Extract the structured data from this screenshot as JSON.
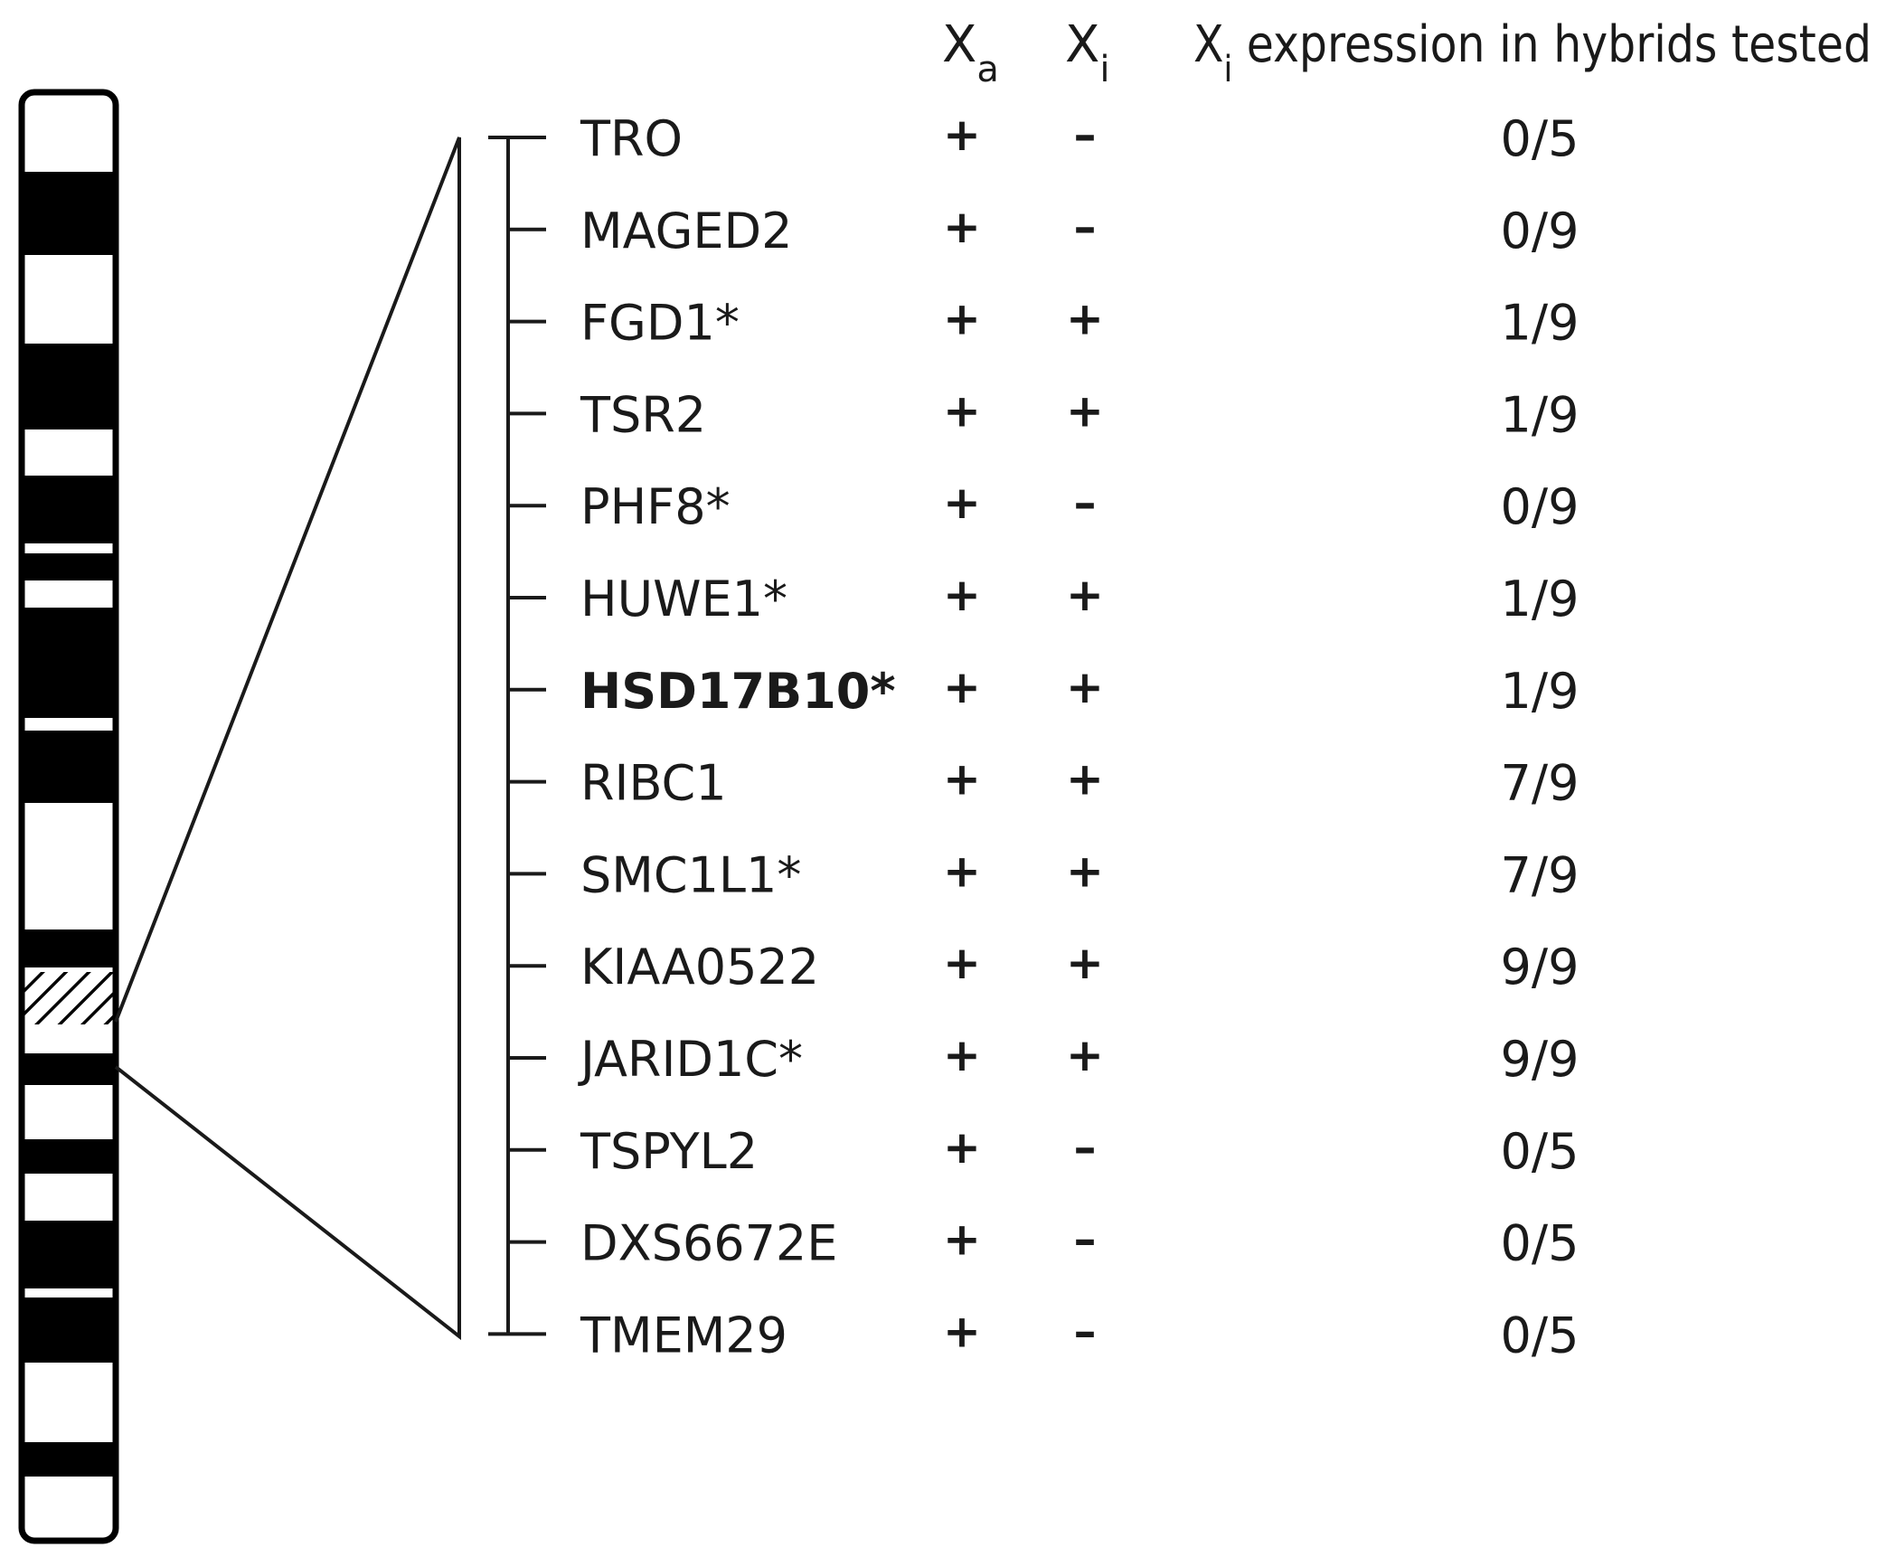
{
  "header": {
    "xa_main": "X",
    "xa_sub": "a",
    "xi_main": "X",
    "xi_sub": "i",
    "expr_main": "X",
    "expr_sub": "i",
    "expr_rest": " expression in hybrids tested"
  },
  "genes": [
    {
      "name": "TRO",
      "xa": "+",
      "xi": "–",
      "expr": "0/5",
      "bold": false
    },
    {
      "name": "MAGED2",
      "xa": "+",
      "xi": "–",
      "expr": "0/9",
      "bold": false
    },
    {
      "name": "FGD1*",
      "xa": "+",
      "xi": "+",
      "expr": "1/9",
      "bold": false
    },
    {
      "name": "TSR2",
      "xa": "+",
      "xi": "+",
      "expr": "1/9",
      "bold": false
    },
    {
      "name": "PHF8*",
      "xa": "+",
      "xi": "–",
      "expr": "0/9",
      "bold": false
    },
    {
      "name": "HUWE1*",
      "xa": "+",
      "xi": "+",
      "expr": "1/9",
      "bold": false
    },
    {
      "name": "HSD17B10*",
      "xa": "+",
      "xi": "+",
      "expr": "1/9",
      "bold": true
    },
    {
      "name": "RIBC1",
      "xa": "+",
      "xi": "+",
      "expr": "7/9",
      "bold": false
    },
    {
      "name": "SMC1L1*",
      "xa": "+",
      "xi": "+",
      "expr": "7/9",
      "bold": false
    },
    {
      "name": "KIAA0522",
      "xa": "+",
      "xi": "+",
      "expr": "9/9",
      "bold": false
    },
    {
      "name": "JARID1C*",
      "xa": "+",
      "xi": "+",
      "expr": "9/9",
      "bold": false
    },
    {
      "name": "TSPYL2",
      "xa": "+",
      "xi": "–",
      "expr": "0/5",
      "bold": false
    },
    {
      "name": "DXS6672E",
      "xa": "+",
      "xi": "–",
      "expr": "0/5",
      "bold": false
    },
    {
      "name": "TMEM29",
      "xa": "+",
      "xi": "–",
      "expr": "0/5",
      "bold": false
    }
  ],
  "colors": {
    "ink": "#1a1a1a",
    "band": "#000000",
    "background": "#ffffff"
  }
}
